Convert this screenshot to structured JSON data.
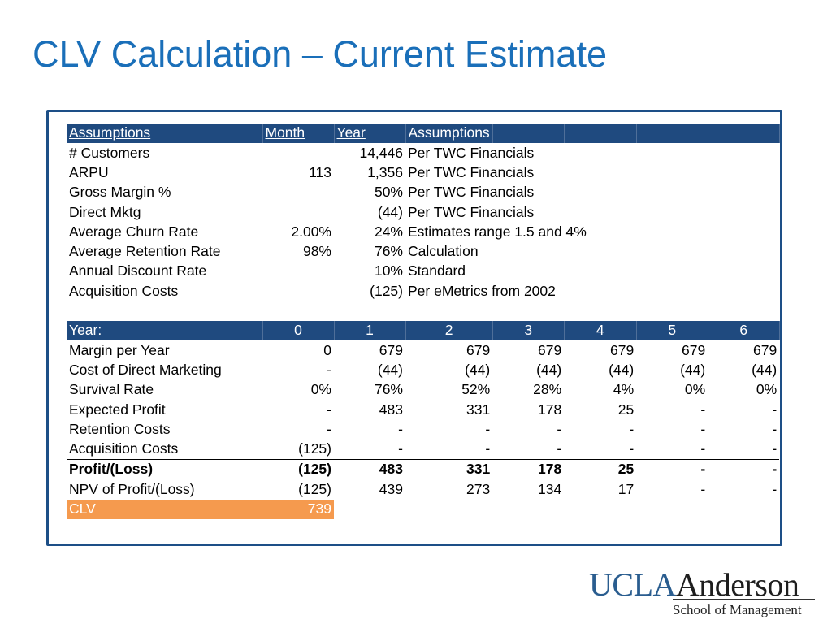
{
  "title": "CLV Calculation – Current Estimate",
  "assumptions": {
    "headers": [
      "Assumptions",
      "Month",
      "Year",
      "Assumptions"
    ],
    "rows": [
      {
        "label": "# Customers",
        "month": "",
        "year": "14,446",
        "note": "Per TWC Financials"
      },
      {
        "label": "ARPU",
        "month": "113",
        "year": "1,356",
        "note": "Per TWC Financials"
      },
      {
        "label": "Gross Margin %",
        "month": "",
        "year": "50%",
        "note": "Per TWC Financials"
      },
      {
        "label": "Direct Mktg",
        "month": "",
        "year": "(44)",
        "note": "Per TWC Financials"
      },
      {
        "label": "Average Churn Rate",
        "month": "2.00%",
        "year": "24%",
        "note": "Estimates range 1.5 and 4%"
      },
      {
        "label": "Average Retention Rate",
        "month": "98%",
        "year": "76%",
        "note": "Calculation"
      },
      {
        "label": "Annual Discount Rate",
        "month": "",
        "year": "10%",
        "note": "Standard"
      },
      {
        "label": "Acquisition Costs",
        "month": "",
        "year": "(125)",
        "note": "Per eMetrics from 2002"
      }
    ]
  },
  "projection": {
    "header_label": "Year:",
    "years": [
      "0",
      "1",
      "2",
      "3",
      "4",
      "5",
      "6"
    ],
    "rows": [
      {
        "label": "Margin per Year",
        "values": [
          "0",
          "679",
          "679",
          "679",
          "679",
          "679",
          "679"
        ]
      },
      {
        "label": "Cost of Direct Marketing",
        "values": [
          "-",
          "(44)",
          "(44)",
          "(44)",
          "(44)",
          "(44)",
          "(44)"
        ]
      },
      {
        "label": "Survival Rate",
        "values": [
          "0%",
          "76%",
          "52%",
          "28%",
          "4%",
          "0%",
          "0%"
        ]
      },
      {
        "label": "Expected Profit",
        "values": [
          "-",
          "483",
          "331",
          "178",
          "25",
          "-",
          "-"
        ]
      },
      {
        "label": "Retention Costs",
        "values": [
          "-",
          "-",
          "-",
          "-",
          "-",
          "-",
          "-"
        ]
      },
      {
        "label": "Acquisition Costs",
        "values": [
          "(125)",
          "-",
          "-",
          "-",
          "-",
          "-",
          "-"
        ]
      }
    ],
    "profit": {
      "label": "Profit/(Loss)",
      "values": [
        "(125)",
        "483",
        "331",
        "178",
        "25",
        "-",
        "-"
      ]
    },
    "npv": {
      "label": "NPV of Profit/(Loss)",
      "values": [
        "(125)",
        "439",
        "273",
        "134",
        "17",
        "-",
        "-"
      ]
    },
    "clv": {
      "label": "CLV",
      "value": "739"
    }
  },
  "logo": {
    "part1": "UCLA",
    "part2": "Anderson",
    "subtitle": "School of Management"
  },
  "colors": {
    "title": "#1a6fb9",
    "header_bg": "#1f4a7f",
    "clv_bg": "#f59a4e",
    "frame": "#1d4f87"
  }
}
